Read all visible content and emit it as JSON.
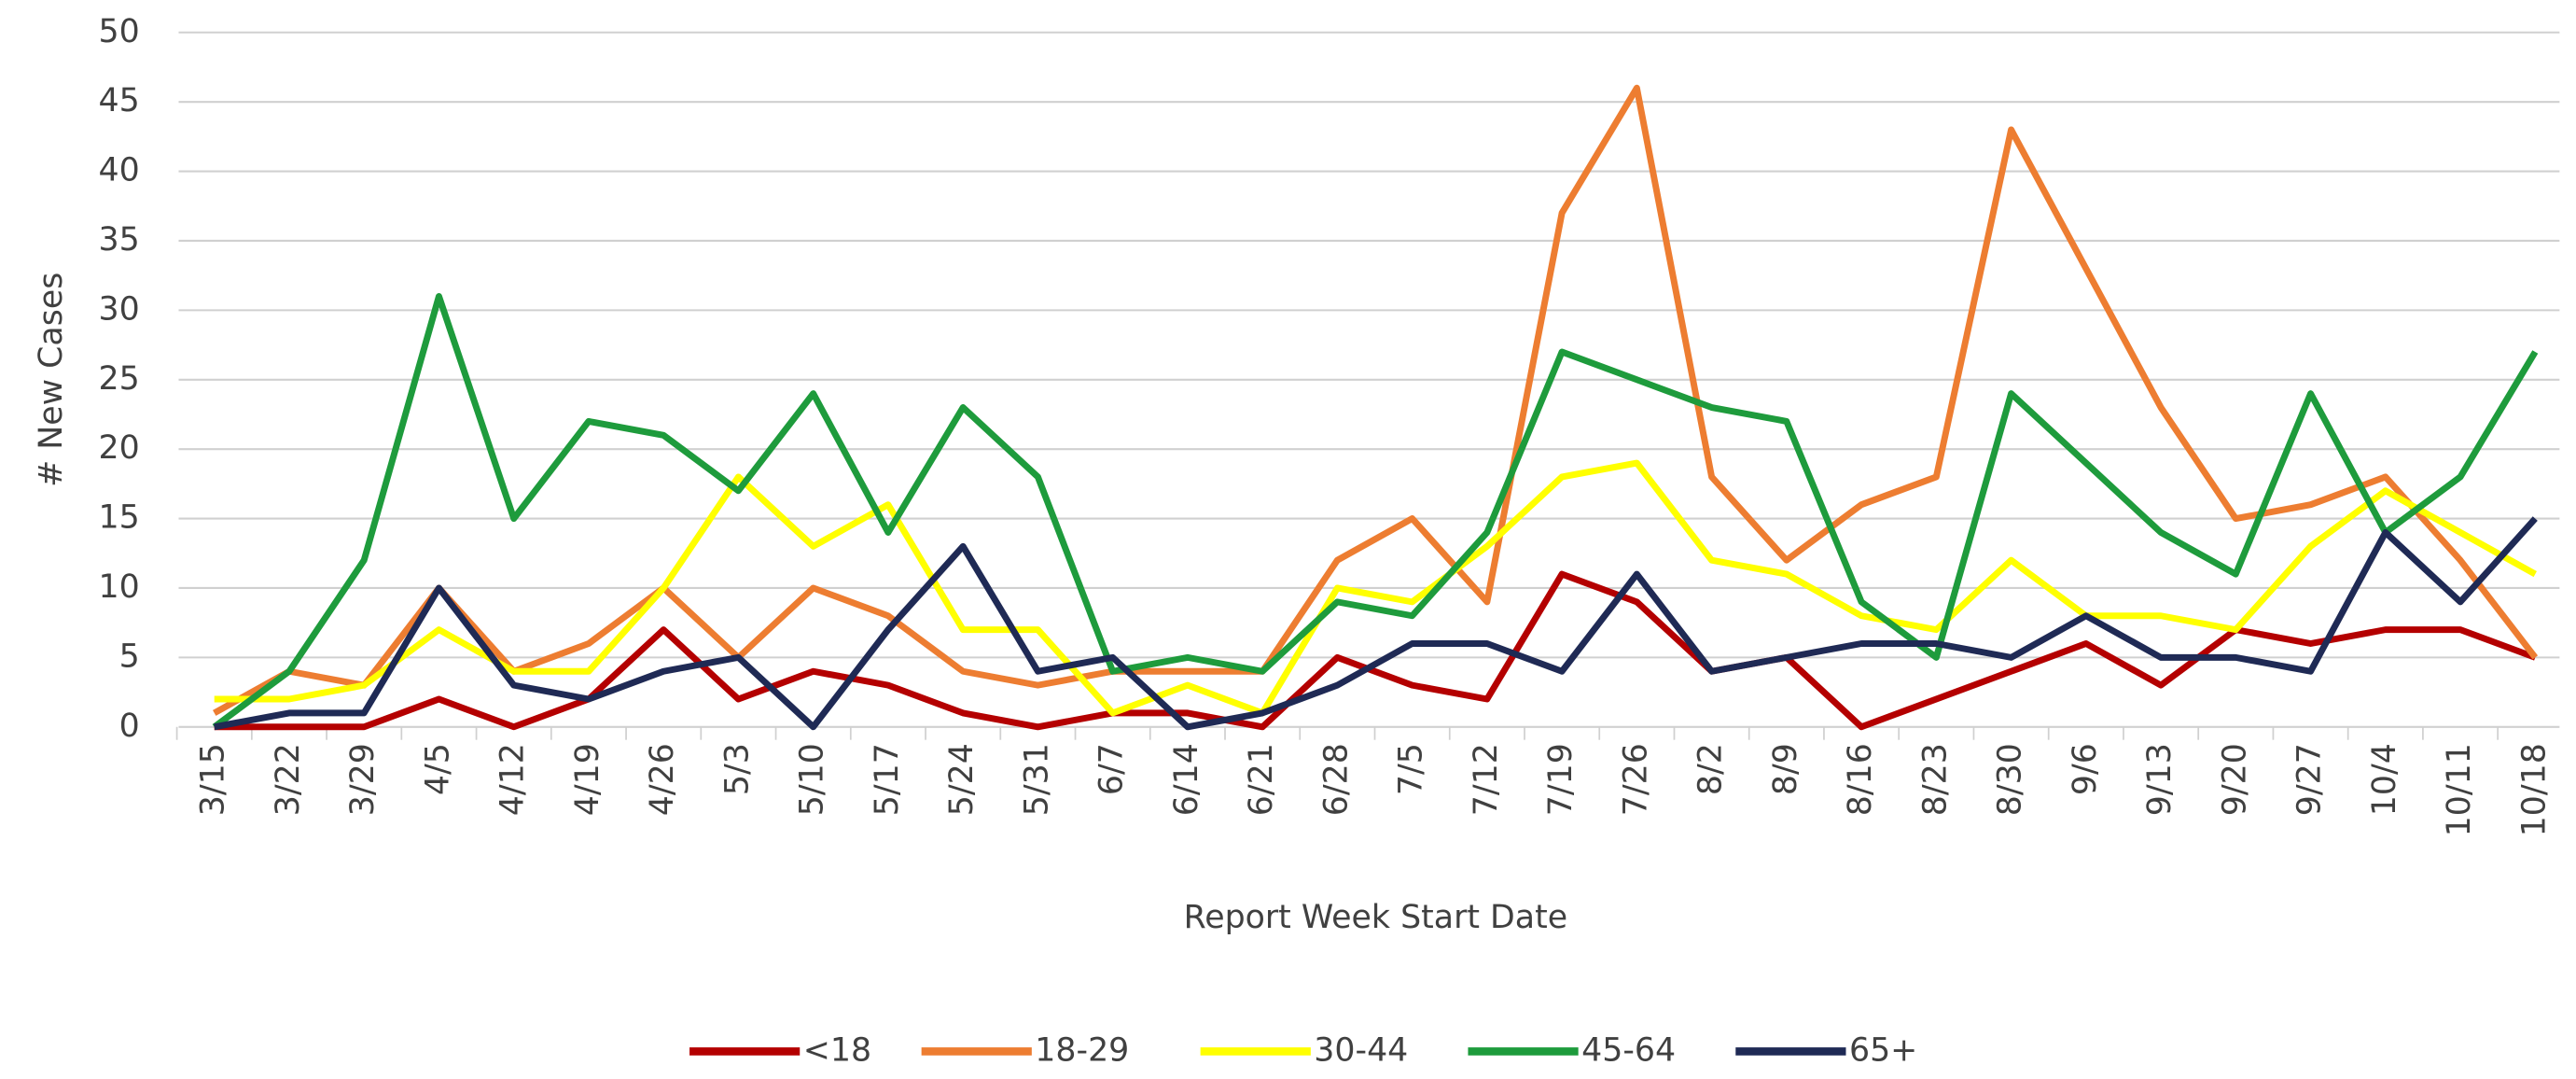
{
  "chart_data": {
    "type": "line",
    "x_label": "Report Week Start Date",
    "y_label": "# New Cases",
    "categories": [
      "3/15",
      "3/22",
      "3/29",
      "4/5",
      "4/12",
      "4/19",
      "4/26",
      "5/3",
      "5/10",
      "5/17",
      "5/24",
      "5/31",
      "6/7",
      "6/14",
      "6/21",
      "6/28",
      "7/5",
      "7/12",
      "7/19",
      "7/26",
      "8/2",
      "8/9",
      "8/16",
      "8/23",
      "8/30",
      "9/6",
      "9/13",
      "9/20",
      "9/27",
      "10/4",
      "10/11",
      "10/18"
    ],
    "series": [
      {
        "name": "<18",
        "color": "#b40000",
        "values": [
          0,
          0,
          0,
          2,
          0,
          2,
          7,
          2,
          4,
          3,
          1,
          0,
          1,
          1,
          0,
          5,
          3,
          2,
          11,
          9,
          4,
          5,
          0,
          2,
          4,
          6,
          3,
          7,
          6,
          7,
          7,
          5
        ]
      },
      {
        "name": "18-29",
        "color": "#ed7d31",
        "values": [
          1,
          4,
          3,
          10,
          4,
          6,
          10,
          5,
          10,
          8,
          4,
          3,
          4,
          4,
          4,
          12,
          15,
          9,
          37,
          46,
          18,
          12,
          16,
          18,
          43,
          33,
          23,
          15,
          16,
          18,
          12,
          5
        ]
      },
      {
        "name": "30-44",
        "color": "#ffff00",
        "values": [
          2,
          2,
          3,
          7,
          4,
          4,
          10,
          18,
          13,
          16,
          7,
          7,
          1,
          3,
          1,
          10,
          9,
          13,
          18,
          19,
          12,
          11,
          8,
          7,
          12,
          8,
          8,
          7,
          13,
          17,
          14,
          11
        ]
      },
      {
        "name": "45-64",
        "color": "#1e9b3c",
        "values": [
          0,
          4,
          12,
          31,
          15,
          22,
          21,
          17,
          24,
          14,
          23,
          18,
          4,
          5,
          4,
          9,
          8,
          14,
          27,
          25,
          23,
          22,
          9,
          5,
          24,
          19,
          14,
          11,
          24,
          14,
          18,
          27
        ]
      },
      {
        "name": "65+",
        "color": "#1f2a55",
        "values": [
          0,
          1,
          1,
          10,
          3,
          2,
          4,
          5,
          0,
          7,
          13,
          4,
          5,
          0,
          1,
          3,
          6,
          6,
          4,
          11,
          4,
          5,
          6,
          6,
          5,
          8,
          5,
          5,
          4,
          14,
          9,
          15
        ]
      }
    ],
    "ylim": [
      0,
      50
    ],
    "yticks": [
      0,
      5,
      10,
      15,
      20,
      25,
      30,
      35,
      40,
      45,
      50
    ],
    "grid": true,
    "legend": "bottom"
  }
}
